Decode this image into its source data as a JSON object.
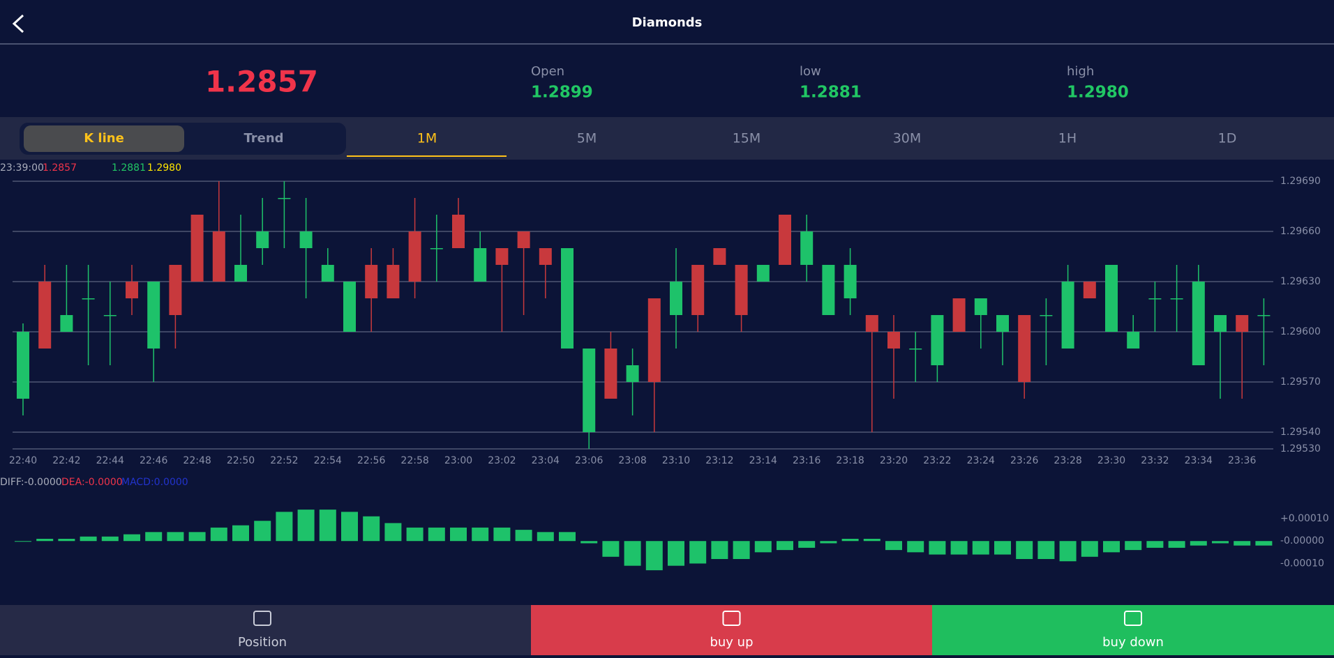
{
  "header": {
    "title": "Diamonds"
  },
  "quote": {
    "price": "1.2857",
    "open_label": "Open",
    "open": "1.2899",
    "low_label": "low",
    "low": "1.2881",
    "high_label": "high",
    "high": "1.2980"
  },
  "tabs": {
    "modes": [
      "K line",
      "Trend"
    ],
    "periods": [
      "1M",
      "5M",
      "15M",
      "30M",
      "1H",
      "1D"
    ]
  },
  "chart_data": [
    {
      "type": "candlestick",
      "info": [
        "23:39:00",
        "1.2857",
        "1.2881",
        "1.2980"
      ],
      "categories": [
        "22:40",
        null,
        "22:42",
        null,
        "22:44",
        null,
        "22:46",
        null,
        "22:48",
        null,
        "22:50",
        null,
        "22:52",
        null,
        "22:54",
        null,
        "22:56",
        null,
        "22:58",
        null,
        "23:00",
        null,
        "23:02",
        null,
        "23:04",
        null,
        "23:06",
        null,
        "23:08",
        null,
        "23:10",
        null,
        "23:12",
        null,
        "23:14",
        null,
        "23:16",
        null,
        "23:18",
        null,
        "23:20",
        null,
        "23:22",
        null,
        "23:24",
        null,
        "23:26",
        null,
        "23:28",
        null,
        "23:30",
        null,
        "23:32",
        null,
        "23:34",
        null,
        "23:36",
        null
      ],
      "open": [
        1.296,
        1.2959,
        1.2961,
        1.2962,
        1.2961,
        1.2962,
        1.2963,
        1.2961,
        1.2963,
        1.2963,
        1.2964,
        1.2966,
        1.2968,
        1.2966,
        1.2964,
        1.2963,
        1.2962,
        1.2962,
        1.2963,
        1.2965,
        1.2965,
        1.2965,
        1.2964,
        1.2965,
        1.2964,
        1.2965,
        1.2959,
        1.2956,
        1.2958,
        1.2957,
        1.2963,
        1.2961,
        1.2964,
        1.2961,
        1.2964,
        1.2964,
        1.2966,
        1.2964,
        1.2964,
        1.296,
        1.2959,
        1.2959,
        1.2961,
        1.296,
        1.2962,
        1.2961,
        1.2957,
        1.2961,
        1.2963,
        1.2962,
        1.2964,
        1.296,
        1.2962,
        1.2962,
        1.2963,
        1.2961,
        1.296,
        1.2961
      ],
      "high": [
        1.29605,
        1.2964,
        1.2964,
        1.2964,
        1.2963,
        1.2964,
        1.2963,
        1.2964,
        1.2967,
        1.2969,
        1.2967,
        1.2968,
        1.2969,
        1.2968,
        1.2965,
        1.2963,
        1.2965,
        1.2965,
        1.2968,
        1.2967,
        1.2968,
        1.2966,
        1.2965,
        1.2966,
        1.2965,
        1.2965,
        1.2959,
        1.296,
        1.2959,
        1.2962,
        1.2965,
        1.2964,
        1.2965,
        1.2964,
        1.2964,
        1.2967,
        1.2967,
        1.2964,
        1.2965,
        1.2961,
        1.2961,
        1.296,
        1.2961,
        1.2962,
        1.2962,
        1.2961,
        1.2961,
        1.2962,
        1.2964,
        1.2963,
        1.2964,
        1.2961,
        1.2963,
        1.2964,
        1.2964,
        1.2961,
        1.2961,
        1.2962
      ],
      "low": [
        1.2955,
        1.2959,
        1.296,
        1.2958,
        1.2958,
        1.2961,
        1.2957,
        1.2959,
        1.2963,
        1.2963,
        1.2963,
        1.2964,
        1.2965,
        1.2962,
        1.2963,
        1.296,
        1.296,
        1.2962,
        1.2962,
        1.2963,
        1.2965,
        1.2963,
        1.296,
        1.2961,
        1.2962,
        1.2959,
        1.2953,
        1.2956,
        1.2955,
        1.2954,
        1.2959,
        1.296,
        1.2964,
        1.296,
        1.2963,
        1.2964,
        1.2963,
        1.2961,
        1.2961,
        1.2954,
        1.2956,
        1.2957,
        1.2957,
        1.296,
        1.2959,
        1.2958,
        1.2956,
        1.2958,
        1.2959,
        1.2962,
        1.296,
        1.2959,
        1.296,
        1.296,
        1.2958,
        1.2956,
        1.2956,
        1.2958
      ],
      "close": [
        1.2956,
        1.2963,
        1.296,
        1.2962,
        1.2961,
        1.2963,
        1.2959,
        1.2964,
        1.2967,
        1.2966,
        1.2963,
        1.2965,
        1.2968,
        1.2965,
        1.2963,
        1.296,
        1.2964,
        1.2964,
        1.2966,
        1.2965,
        1.2967,
        1.2963,
        1.2965,
        1.2966,
        1.2965,
        1.2959,
        1.2954,
        1.2959,
        1.2957,
        1.2962,
        1.2961,
        1.2964,
        1.2965,
        1.2964,
        1.2963,
        1.2967,
        1.2964,
        1.2961,
        1.2962,
        1.2961,
        1.296,
        1.2959,
        1.2958,
        1.2962,
        1.2961,
        1.296,
        1.2961,
        1.2961,
        1.2959,
        1.2963,
        1.296,
        1.2959,
        1.2962,
        1.2962,
        1.2958,
        1.296,
        1.2961,
        1.2961
      ],
      "up_color": "#c8393d",
      "down_color": "#1ec26a",
      "ylim": [
        1.2953,
        1.2969
      ],
      "yticks": [
        {
          "value": 1.2969,
          "label": "1.29690"
        },
        {
          "value": 1.2966,
          "label": "1.29660"
        },
        {
          "value": 1.2963,
          "label": "1.29630"
        },
        {
          "value": 1.296,
          "label": "1.29600"
        },
        {
          "value": 1.2957,
          "label": "1.29570"
        },
        {
          "value": 1.2954,
          "label": "1.29540"
        },
        {
          "value": 1.2953,
          "label": "1.29530"
        }
      ],
      "grid": true
    },
    {
      "type": "bar",
      "legend": [
        "DIFF:-0.0000",
        "DEA:-0.0000",
        "MACD:0.0000"
      ],
      "values": [
        0,
        1e-05,
        1e-05,
        2e-05,
        2e-05,
        3e-05,
        4e-05,
        4e-05,
        4e-05,
        6e-05,
        7e-05,
        9e-05,
        0.00013,
        0.00014,
        0.00014,
        0.00013,
        0.00011,
        8e-05,
        6e-05,
        6e-05,
        6e-05,
        6e-05,
        6e-05,
        5e-05,
        4e-05,
        4e-05,
        -1e-05,
        -7e-05,
        -0.00011,
        -0.00013,
        -0.00011,
        -0.0001,
        -8e-05,
        -8e-05,
        -5e-05,
        -4e-05,
        -3e-05,
        -1e-05,
        1e-05,
        1e-05,
        -4e-05,
        -5e-05,
        -6e-05,
        -6e-05,
        -6e-05,
        -6e-05,
        -8e-05,
        -8e-05,
        -9e-05,
        -7e-05,
        -5e-05,
        -4e-05,
        -3e-05,
        -3e-05,
        -2e-05,
        -1e-05,
        -2e-05,
        -2e-05
      ],
      "color": "#1ec26a",
      "ylim": [
        -0.00026,
        0.00019
      ],
      "yticks": [
        {
          "value": 0.0001,
          "label": "+0.00010"
        },
        {
          "value": 0,
          "label": "-0.00000"
        },
        {
          "value": -0.0001,
          "label": "-0.00010"
        }
      ]
    }
  ],
  "footer": {
    "buttons": [
      "Position",
      "buy up",
      "buy down"
    ]
  }
}
